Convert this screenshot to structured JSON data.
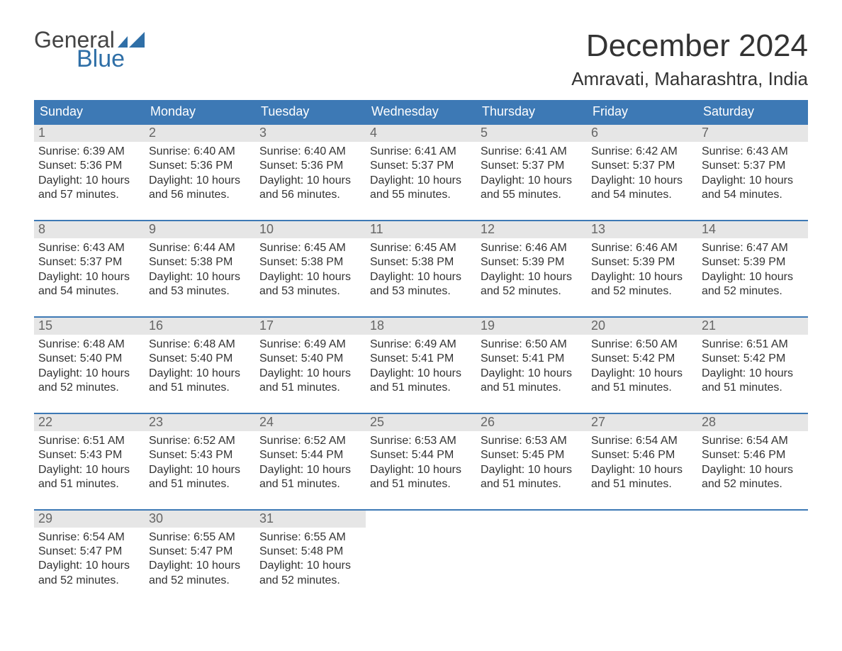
{
  "logo": {
    "line1": "General",
    "line2": "Blue"
  },
  "title": "December 2024",
  "location": "Amravati, Maharashtra, India",
  "colors": {
    "header_bg": "#3d79b5",
    "header_text": "#ffffff",
    "daynum_bg": "#e6e6e6",
    "daynum_text": "#666666",
    "body_text": "#333333",
    "row_separator": "#3d79b5",
    "logo_blue": "#2f6fa7",
    "logo_gray": "#444444",
    "background": "#ffffff"
  },
  "day_headers": [
    "Sunday",
    "Monday",
    "Tuesday",
    "Wednesday",
    "Thursday",
    "Friday",
    "Saturday"
  ],
  "labels": {
    "sunrise": "Sunrise:",
    "sunset": "Sunset:",
    "daylight": "Daylight:"
  },
  "weeks": [
    [
      {
        "day": "1",
        "sunrise": "6:39 AM",
        "sunset": "5:36 PM",
        "dl1": "10 hours",
        "dl2": "and 57 minutes."
      },
      {
        "day": "2",
        "sunrise": "6:40 AM",
        "sunset": "5:36 PM",
        "dl1": "10 hours",
        "dl2": "and 56 minutes."
      },
      {
        "day": "3",
        "sunrise": "6:40 AM",
        "sunset": "5:36 PM",
        "dl1": "10 hours",
        "dl2": "and 56 minutes."
      },
      {
        "day": "4",
        "sunrise": "6:41 AM",
        "sunset": "5:37 PM",
        "dl1": "10 hours",
        "dl2": "and 55 minutes."
      },
      {
        "day": "5",
        "sunrise": "6:41 AM",
        "sunset": "5:37 PM",
        "dl1": "10 hours",
        "dl2": "and 55 minutes."
      },
      {
        "day": "6",
        "sunrise": "6:42 AM",
        "sunset": "5:37 PM",
        "dl1": "10 hours",
        "dl2": "and 54 minutes."
      },
      {
        "day": "7",
        "sunrise": "6:43 AM",
        "sunset": "5:37 PM",
        "dl1": "10 hours",
        "dl2": "and 54 minutes."
      }
    ],
    [
      {
        "day": "8",
        "sunrise": "6:43 AM",
        "sunset": "5:37 PM",
        "dl1": "10 hours",
        "dl2": "and 54 minutes."
      },
      {
        "day": "9",
        "sunrise": "6:44 AM",
        "sunset": "5:38 PM",
        "dl1": "10 hours",
        "dl2": "and 53 minutes."
      },
      {
        "day": "10",
        "sunrise": "6:45 AM",
        "sunset": "5:38 PM",
        "dl1": "10 hours",
        "dl2": "and 53 minutes."
      },
      {
        "day": "11",
        "sunrise": "6:45 AM",
        "sunset": "5:38 PM",
        "dl1": "10 hours",
        "dl2": "and 53 minutes."
      },
      {
        "day": "12",
        "sunrise": "6:46 AM",
        "sunset": "5:39 PM",
        "dl1": "10 hours",
        "dl2": "and 52 minutes."
      },
      {
        "day": "13",
        "sunrise": "6:46 AM",
        "sunset": "5:39 PM",
        "dl1": "10 hours",
        "dl2": "and 52 minutes."
      },
      {
        "day": "14",
        "sunrise": "6:47 AM",
        "sunset": "5:39 PM",
        "dl1": "10 hours",
        "dl2": "and 52 minutes."
      }
    ],
    [
      {
        "day": "15",
        "sunrise": "6:48 AM",
        "sunset": "5:40 PM",
        "dl1": "10 hours",
        "dl2": "and 52 minutes."
      },
      {
        "day": "16",
        "sunrise": "6:48 AM",
        "sunset": "5:40 PM",
        "dl1": "10 hours",
        "dl2": "and 51 minutes."
      },
      {
        "day": "17",
        "sunrise": "6:49 AM",
        "sunset": "5:40 PM",
        "dl1": "10 hours",
        "dl2": "and 51 minutes."
      },
      {
        "day": "18",
        "sunrise": "6:49 AM",
        "sunset": "5:41 PM",
        "dl1": "10 hours",
        "dl2": "and 51 minutes."
      },
      {
        "day": "19",
        "sunrise": "6:50 AM",
        "sunset": "5:41 PM",
        "dl1": "10 hours",
        "dl2": "and 51 minutes."
      },
      {
        "day": "20",
        "sunrise": "6:50 AM",
        "sunset": "5:42 PM",
        "dl1": "10 hours",
        "dl2": "and 51 minutes."
      },
      {
        "day": "21",
        "sunrise": "6:51 AM",
        "sunset": "5:42 PM",
        "dl1": "10 hours",
        "dl2": "and 51 minutes."
      }
    ],
    [
      {
        "day": "22",
        "sunrise": "6:51 AM",
        "sunset": "5:43 PM",
        "dl1": "10 hours",
        "dl2": "and 51 minutes."
      },
      {
        "day": "23",
        "sunrise": "6:52 AM",
        "sunset": "5:43 PM",
        "dl1": "10 hours",
        "dl2": "and 51 minutes."
      },
      {
        "day": "24",
        "sunrise": "6:52 AM",
        "sunset": "5:44 PM",
        "dl1": "10 hours",
        "dl2": "and 51 minutes."
      },
      {
        "day": "25",
        "sunrise": "6:53 AM",
        "sunset": "5:44 PM",
        "dl1": "10 hours",
        "dl2": "and 51 minutes."
      },
      {
        "day": "26",
        "sunrise": "6:53 AM",
        "sunset": "5:45 PM",
        "dl1": "10 hours",
        "dl2": "and 51 minutes."
      },
      {
        "day": "27",
        "sunrise": "6:54 AM",
        "sunset": "5:46 PM",
        "dl1": "10 hours",
        "dl2": "and 51 minutes."
      },
      {
        "day": "28",
        "sunrise": "6:54 AM",
        "sunset": "5:46 PM",
        "dl1": "10 hours",
        "dl2": "and 52 minutes."
      }
    ],
    [
      {
        "day": "29",
        "sunrise": "6:54 AM",
        "sunset": "5:47 PM",
        "dl1": "10 hours",
        "dl2": "and 52 minutes."
      },
      {
        "day": "30",
        "sunrise": "6:55 AM",
        "sunset": "5:47 PM",
        "dl1": "10 hours",
        "dl2": "and 52 minutes."
      },
      {
        "day": "31",
        "sunrise": "6:55 AM",
        "sunset": "5:48 PM",
        "dl1": "10 hours",
        "dl2": "and 52 minutes."
      },
      null,
      null,
      null,
      null
    ]
  ]
}
